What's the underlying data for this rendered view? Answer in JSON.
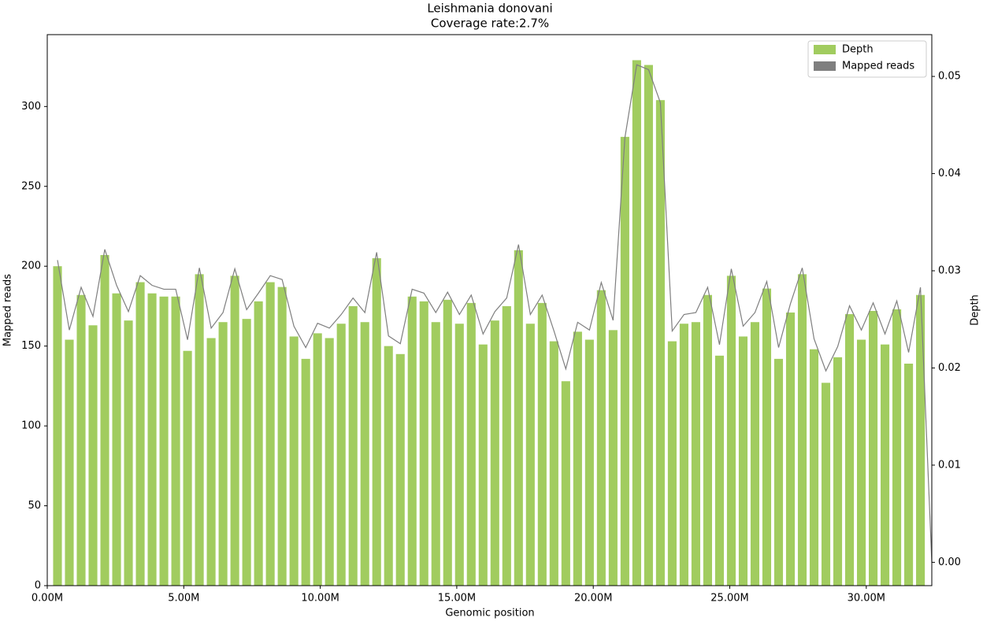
{
  "chart_data": {
    "type": "bar_line",
    "title": "Leishmania donovani",
    "subtitle": "Coverage rate:2.7%",
    "x_label": "Genomic position",
    "y_label": "Mapped reads",
    "y2_label": "Depth",
    "xlim": [
      0,
      32400000
    ],
    "xticks": [
      {
        "value": 0,
        "label": "0.00M"
      },
      {
        "value": 5000000,
        "label": "5.00M"
      },
      {
        "value": 10000000,
        "label": "10.00M"
      },
      {
        "value": 15000000,
        "label": "15.00M"
      },
      {
        "value": 20000000,
        "label": "20.00M"
      },
      {
        "value": 25000000,
        "label": "25.00M"
      },
      {
        "value": 30000000,
        "label": "30.00M"
      }
    ],
    "ylim": [
      0,
      345
    ],
    "yticks": [
      0,
      50,
      100,
      150,
      200,
      250,
      300
    ],
    "y2lim": [
      -0.0024,
      0.0543
    ],
    "y2ticks": [
      {
        "value": 0,
        "label": "0.00"
      },
      {
        "value": 0.01,
        "label": "0.01"
      },
      {
        "value": 0.02,
        "label": "0.02"
      },
      {
        "value": 0.03,
        "label": "0.03"
      },
      {
        "value": 0.04,
        "label": "0.04"
      },
      {
        "value": 0.05,
        "label": "0.05"
      }
    ],
    "legend": "upper right",
    "series": [
      {
        "name": "Depth",
        "kind": "bar",
        "color": "#a1cc5f",
        "x": [
          375000,
          808000,
          1241000,
          1674000,
          2107000,
          2540000,
          2973000,
          3406000,
          3839000,
          4272000,
          4705000,
          5138000,
          5571000,
          6004000,
          6437000,
          6870000,
          7303000,
          7736000,
          8169000,
          8602000,
          9035000,
          9468000,
          9901000,
          10334000,
          10767000,
          11200000,
          11633000,
          12066000,
          12499000,
          12932000,
          13365000,
          13798000,
          14231000,
          14664000,
          15097000,
          15530000,
          15963000,
          16396000,
          16829000,
          17262000,
          17695000,
          18128000,
          18561000,
          18994000,
          19427000,
          19860000,
          20293000,
          20726000,
          21159000,
          21592000,
          22025000,
          22458000,
          22891000,
          23324000,
          23757000,
          24190000,
          24623000,
          25056000,
          25489000,
          25922000,
          26355000,
          26788000,
          27221000,
          27654000,
          28087000,
          28520000,
          28953000,
          29386000,
          29819000,
          30252000,
          30685000,
          31118000,
          31551000,
          31984000
        ],
        "values": [
          200,
          154,
          182,
          163,
          207,
          183,
          166,
          190,
          183,
          181,
          181,
          147,
          195,
          155,
          165,
          194,
          167,
          178,
          190,
          187,
          156,
          142,
          158,
          155,
          164,
          175,
          165,
          205,
          150,
          145,
          181,
          178,
          165,
          179,
          164,
          177,
          151,
          166,
          175,
          210,
          164,
          177,
          153,
          128,
          159,
          154,
          185,
          160,
          281,
          329,
          326,
          304,
          153,
          164,
          165,
          182,
          144,
          194,
          156,
          165,
          186,
          142,
          171,
          195,
          148,
          127,
          143,
          170,
          154,
          172,
          151,
          173,
          139,
          182
        ]
      },
      {
        "name": "Mapped reads",
        "kind": "line",
        "axis": "y2",
        "color": "#7f7f7f",
        "x": [
          375000,
          808000,
          1241000,
          1674000,
          2107000,
          2540000,
          2973000,
          3406000,
          3839000,
          4272000,
          4705000,
          5138000,
          5571000,
          6004000,
          6437000,
          6870000,
          7303000,
          7736000,
          8169000,
          8602000,
          9035000,
          9468000,
          9901000,
          10334000,
          10767000,
          11200000,
          11633000,
          12066000,
          12499000,
          12932000,
          13365000,
          13798000,
          14231000,
          14664000,
          15097000,
          15530000,
          15963000,
          16396000,
          16829000,
          17262000,
          17695000,
          18128000,
          18561000,
          18994000,
          19427000,
          19860000,
          20293000,
          20726000,
          21159000,
          21592000,
          22025000,
          22458000,
          22891000,
          23324000,
          23757000,
          24190000,
          24623000,
          25056000,
          25489000,
          25922000,
          26355000,
          26788000,
          27221000,
          27654000,
          28087000,
          28520000,
          28953000,
          29386000,
          29819000,
          30252000,
          30685000,
          31118000,
          31551000,
          31984000,
          32400000
        ],
        "values": [
          0.0311,
          0.0239,
          0.0283,
          0.0253,
          0.0322,
          0.0285,
          0.0258,
          0.0295,
          0.0285,
          0.0281,
          0.0281,
          0.0229,
          0.0303,
          0.0241,
          0.0257,
          0.0302,
          0.026,
          0.0277,
          0.0295,
          0.0291,
          0.0243,
          0.0221,
          0.0246,
          0.0241,
          0.0255,
          0.0272,
          0.0257,
          0.0319,
          0.0233,
          0.0225,
          0.0281,
          0.0277,
          0.0257,
          0.0278,
          0.0255,
          0.0275,
          0.0235,
          0.0258,
          0.0272,
          0.0327,
          0.0255,
          0.0275,
          0.0238,
          0.0199,
          0.0247,
          0.0239,
          0.0288,
          0.0249,
          0.0437,
          0.0512,
          0.0507,
          0.0473,
          0.0238,
          0.0255,
          0.0257,
          0.0283,
          0.0224,
          0.0302,
          0.0243,
          0.0257,
          0.0289,
          0.0221,
          0.0266,
          0.0303,
          0.023,
          0.0197,
          0.0222,
          0.0264,
          0.0239,
          0.0267,
          0.0235,
          0.0269,
          0.0216,
          0.0283,
          0
        ]
      }
    ]
  }
}
